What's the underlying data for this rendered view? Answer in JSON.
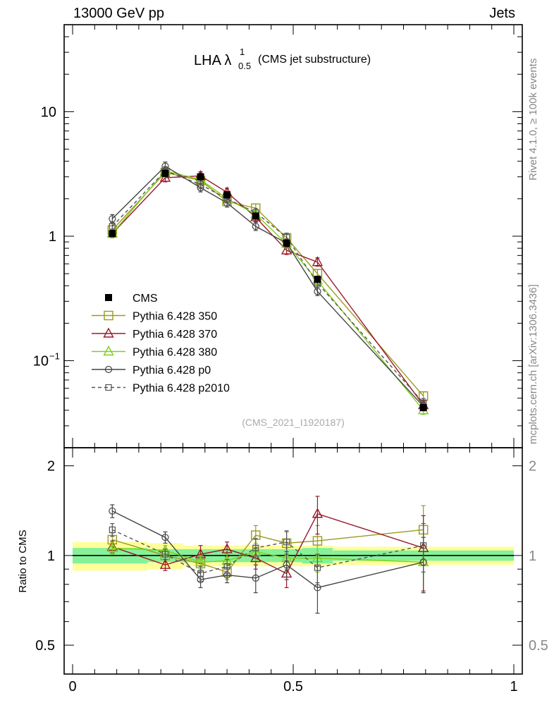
{
  "header": {
    "left": "13000 GeV pp",
    "right": "Jets"
  },
  "side": {
    "rivet": "Rivet 4.1.0, ≥ 100k events",
    "mcplots": "mcplots.cern.ch [arXiv:1306.3436]"
  },
  "chart_data": {
    "type": "line",
    "title_main": "LHA λ",
    "title_sup": "1",
    "title_sub": "0.5",
    "title_suffix": "(CMS jet substructure)",
    "analysis_tag": "(CMS_2021_I1920187)",
    "xlim": [
      0,
      1
    ],
    "x_ticks": [
      "0",
      "0.5",
      "1"
    ],
    "main": {
      "yscale": "log",
      "ylim": [
        0.02,
        50
      ],
      "y_ticks": [
        {
          "v": 10,
          "t": "10"
        },
        {
          "v": 1,
          "t": "1"
        },
        {
          "v": 0.1,
          "t": "10",
          "sup": "−1"
        }
      ]
    },
    "ratio": {
      "ylabel": "Ratio to CMS",
      "ylim": [
        0.4,
        2.3
      ],
      "y_ticks": [
        "2",
        "1",
        "0.5"
      ]
    },
    "x": [
      0.09,
      0.21,
      0.29,
      0.35,
      0.415,
      0.485,
      0.555,
      0.795
    ],
    "bins": [
      [
        0,
        0.17
      ],
      [
        0.17,
        0.25
      ],
      [
        0.25,
        0.32
      ],
      [
        0.32,
        0.38
      ],
      [
        0.38,
        0.45
      ],
      [
        0.45,
        0.52
      ],
      [
        0.52,
        0.59
      ],
      [
        0.59,
        1.0
      ]
    ],
    "data": {
      "name": "CMS",
      "values": [
        1.05,
        3.2,
        3.0,
        2.15,
        1.45,
        0.88,
        0.45,
        0.042
      ],
      "ratio_err_stat": [
        0.06,
        0.05,
        0.05,
        0.05,
        0.05,
        0.05,
        0.06,
        0.04
      ],
      "ratio_err_total": [
        0.11,
        0.1,
        0.08,
        0.08,
        0.08,
        0.08,
        0.08,
        0.07
      ]
    },
    "series": [
      {
        "name": "Pythia 6.428 350",
        "color": "#9a9a22",
        "marker": "square",
        "dashed": false,
        "values": [
          1.12,
          3.25,
          2.8,
          1.9,
          1.68,
          0.97,
          0.5,
          0.052
        ],
        "ratio": [
          1.13,
          1.0,
          0.94,
          0.88,
          1.17,
          1.1,
          1.12,
          1.22
        ],
        "ratio_err": [
          0.06,
          0.05,
          0.05,
          0.05,
          0.09,
          0.1,
          0.14,
          0.25
        ]
      },
      {
        "name": "Pythia 6.428 370",
        "color": "#991a2a",
        "marker": "triangle",
        "dashed": false,
        "values": [
          1.05,
          2.95,
          3.05,
          2.25,
          1.42,
          0.77,
          0.62,
          0.044
        ],
        "ratio": [
          1.07,
          0.93,
          1.01,
          1.05,
          0.98,
          0.87,
          1.38,
          1.06
        ],
        "ratio_err": [
          0.05,
          0.04,
          0.07,
          0.06,
          0.08,
          0.09,
          0.2,
          0.3
        ]
      },
      {
        "name": "Pythia 6.428 380",
        "color": "#7fd01a",
        "marker": "triangle",
        "dashed": false,
        "values": [
          1.05,
          3.35,
          2.85,
          2.0,
          1.5,
          0.87,
          0.44,
          0.04
        ],
        "ratio": [
          1.06,
          1.04,
          0.95,
          0.96,
          1.03,
          0.98,
          0.98,
          0.95
        ],
        "ratio_err": [
          0.05,
          0.04,
          0.05,
          0.05,
          0.07,
          0.08,
          0.1,
          0.2
        ]
      },
      {
        "name": "Pythia 6.428 p0",
        "color": "#444444",
        "marker": "circle",
        "dashed": false,
        "values": [
          1.38,
          3.65,
          2.45,
          1.85,
          1.2,
          0.88,
          0.36,
          0.043
        ],
        "ratio": [
          1.41,
          1.15,
          0.83,
          0.86,
          0.84,
          0.93,
          0.78,
          0.95
        ],
        "ratio_err": [
          0.07,
          0.05,
          0.05,
          0.05,
          0.09,
          0.1,
          0.14,
          0.2
        ]
      },
      {
        "name": "Pythia 6.428 p2010",
        "color": "#555555",
        "marker": "square-small",
        "dashed": true,
        "values": [
          1.2,
          3.35,
          2.6,
          2.0,
          1.55,
          0.98,
          0.42,
          0.046
        ],
        "ratio": [
          1.22,
          1.01,
          0.87,
          0.92,
          1.06,
          1.11,
          0.91,
          1.08
        ],
        "ratio_err": [
          0.06,
          0.04,
          0.05,
          0.05,
          0.08,
          0.1,
          0.1,
          0.2
        ]
      }
    ]
  }
}
